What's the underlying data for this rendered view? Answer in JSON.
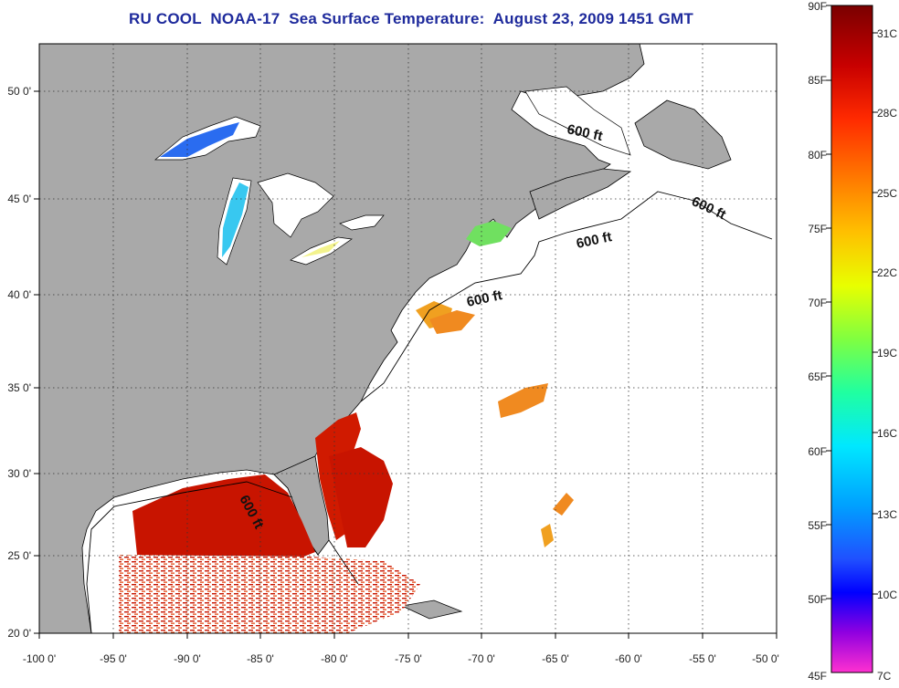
{
  "title": "RU COOL  NOAA-17  Sea Surface Temperature:  August 23, 2009 1451 GMT",
  "x_axis_labels": [
    "-100 0'",
    "-95 0'",
    "-90 0'",
    "-85 0'",
    "-80 0'",
    "-75 0'",
    "-70 0'",
    "-65 0'",
    "-60 0'",
    "-55 0'",
    "-50 0'"
  ],
  "y_axis_labels": [
    "50 0'",
    "45 0'",
    "40 0'",
    "35 0'",
    "30 0'",
    "25 0'",
    "20 0'"
  ],
  "isobath_labels": [
    "600 ft",
    "600 ft",
    "600 ft",
    "600 ft",
    "600 ft"
  ],
  "colorbar": {
    "fahrenheit_labels": [
      "90F",
      "85F",
      "80F",
      "75F",
      "70F",
      "65F",
      "60F",
      "55F",
      "50F",
      "45F"
    ],
    "celsius_labels": [
      "31C",
      "28C",
      "25C",
      "22C",
      "19C",
      "16C",
      "13C",
      "10C",
      "7C"
    ]
  },
  "colors": {
    "land": "#a9a9a9",
    "ocean": "#ffffff",
    "title": "#1e2a9c",
    "hot": "#cc1a00",
    "warm": "#f07800"
  }
}
